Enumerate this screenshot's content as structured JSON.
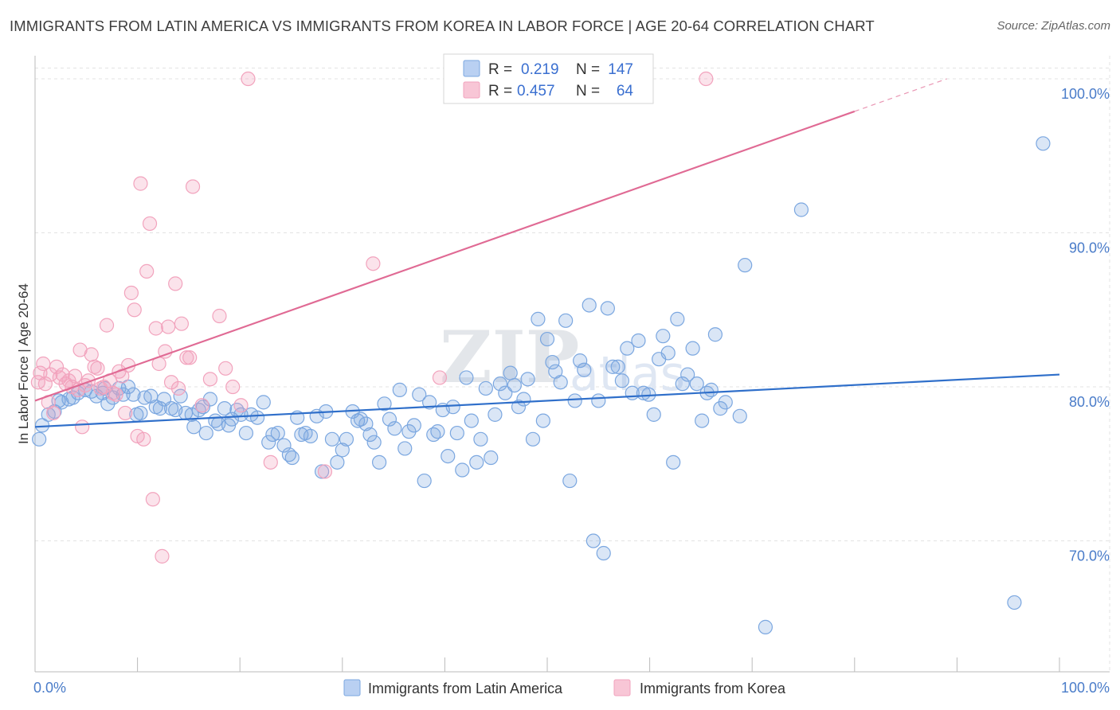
{
  "title": "IMMIGRANTS FROM LATIN AMERICA VS IMMIGRANTS FROM KOREA IN LABOR FORCE | AGE 20-64 CORRELATION CHART",
  "source": "Source: ZipAtlas.com",
  "watermark": {
    "zip": "ZIP",
    "atlas": "atlas"
  },
  "chart_data": {
    "type": "scatter",
    "xlabel": "",
    "ylabel": "In Labor Force | Age 20-64",
    "xlim": [
      0,
      100
    ],
    "ylim": [
      61.5,
      101.5
    ],
    "x_tick_labels": {
      "min": "0.0%",
      "max": "100.0%"
    },
    "y_ticks": [
      70,
      80,
      90,
      100
    ],
    "y_tick_labels": [
      "70.0%",
      "80.0%",
      "90.0%",
      "100.0%"
    ],
    "grid": true,
    "legend_position": "bottom",
    "stats_box_position": "top-center",
    "series": [
      {
        "name": "Immigrants from Latin America",
        "color": "#7ba7e0",
        "line_color": "#2f6fca",
        "r_label": "R =",
        "r": "0.219",
        "n_label": "N =",
        "n": "147",
        "trend": {
          "x": [
            0,
            100
          ],
          "y": [
            77.4,
            80.8
          ],
          "dashed_from": null
        },
        "points": [
          [
            0.4,
            76.6
          ],
          [
            0.7,
            77.5
          ],
          [
            1.3,
            78.2
          ],
          [
            1.9,
            78.4
          ],
          [
            2.3,
            79.1
          ],
          [
            2.6,
            79.0
          ],
          [
            3.3,
            79.2
          ],
          [
            3.7,
            79.3
          ],
          [
            4.2,
            79.6
          ],
          [
            4.9,
            79.8
          ],
          [
            5.5,
            79.7
          ],
          [
            6.0,
            79.4
          ],
          [
            6.6,
            79.6
          ],
          [
            6.8,
            79.9
          ],
          [
            7.1,
            78.9
          ],
          [
            7.6,
            79.3
          ],
          [
            8.2,
            79.9
          ],
          [
            8.6,
            79.5
          ],
          [
            9.1,
            80.0
          ],
          [
            9.6,
            79.5
          ],
          [
            9.9,
            78.2
          ],
          [
            10.3,
            78.3
          ],
          [
            10.7,
            79.3
          ],
          [
            11.3,
            79.4
          ],
          [
            11.8,
            78.7
          ],
          [
            12.2,
            78.6
          ],
          [
            12.6,
            79.2
          ],
          [
            13.3,
            78.6
          ],
          [
            13.7,
            78.5
          ],
          [
            14.2,
            79.4
          ],
          [
            14.7,
            78.3
          ],
          [
            15.3,
            78.2
          ],
          [
            15.5,
            77.4
          ],
          [
            16.0,
            78.5
          ],
          [
            16.4,
            78.7
          ],
          [
            16.7,
            77.0
          ],
          [
            17.1,
            79.2
          ],
          [
            17.6,
            77.8
          ],
          [
            17.9,
            77.6
          ],
          [
            18.5,
            78.6
          ],
          [
            18.9,
            77.5
          ],
          [
            19.2,
            77.9
          ],
          [
            19.7,
            78.5
          ],
          [
            20.1,
            78.2
          ],
          [
            20.6,
            77.0
          ],
          [
            21.1,
            78.2
          ],
          [
            21.7,
            78.0
          ],
          [
            22.3,
            79.0
          ],
          [
            22.8,
            76.4
          ],
          [
            23.2,
            76.9
          ],
          [
            23.7,
            77.0
          ],
          [
            24.3,
            76.2
          ],
          [
            24.8,
            75.6
          ],
          [
            25.1,
            75.4
          ],
          [
            25.6,
            78.0
          ],
          [
            26.0,
            76.9
          ],
          [
            26.4,
            77.0
          ],
          [
            26.9,
            76.8
          ],
          [
            27.5,
            78.1
          ],
          [
            28.0,
            74.5
          ],
          [
            28.4,
            78.4
          ],
          [
            29.0,
            76.6
          ],
          [
            29.5,
            75.1
          ],
          [
            30.0,
            75.9
          ],
          [
            30.4,
            76.6
          ],
          [
            31.0,
            78.4
          ],
          [
            31.5,
            77.8
          ],
          [
            31.8,
            77.9
          ],
          [
            32.3,
            77.6
          ],
          [
            32.7,
            76.9
          ],
          [
            33.1,
            76.4
          ],
          [
            33.6,
            75.1
          ],
          [
            34.1,
            78.9
          ],
          [
            34.6,
            77.9
          ],
          [
            35.1,
            77.3
          ],
          [
            35.6,
            79.8
          ],
          [
            36.1,
            76.0
          ],
          [
            36.5,
            77.1
          ],
          [
            37.0,
            77.5
          ],
          [
            37.5,
            79.5
          ],
          [
            38.0,
            73.9
          ],
          [
            38.5,
            79.0
          ],
          [
            38.9,
            76.9
          ],
          [
            39.3,
            77.1
          ],
          [
            39.8,
            78.5
          ],
          [
            40.3,
            75.5
          ],
          [
            40.8,
            78.7
          ],
          [
            41.2,
            77.0
          ],
          [
            41.7,
            74.6
          ],
          [
            42.1,
            80.6
          ],
          [
            42.6,
            77.8
          ],
          [
            43.1,
            75.1
          ],
          [
            43.5,
            76.6
          ],
          [
            44.0,
            79.9
          ],
          [
            44.5,
            75.4
          ],
          [
            44.9,
            78.2
          ],
          [
            45.4,
            80.2
          ],
          [
            45.9,
            79.6
          ],
          [
            46.4,
            80.9
          ],
          [
            46.8,
            80.1
          ],
          [
            47.2,
            78.7
          ],
          [
            47.7,
            79.2
          ],
          [
            48.1,
            80.5
          ],
          [
            48.6,
            76.6
          ],
          [
            49.1,
            84.4
          ],
          [
            49.6,
            77.8
          ],
          [
            50.0,
            83.1
          ],
          [
            50.5,
            81.6
          ],
          [
            50.8,
            81.0
          ],
          [
            51.3,
            80.3
          ],
          [
            51.8,
            84.3
          ],
          [
            52.2,
            73.9
          ],
          [
            52.7,
            79.1
          ],
          [
            53.2,
            81.7
          ],
          [
            53.6,
            81.1
          ],
          [
            54.1,
            85.3
          ],
          [
            54.5,
            70.0
          ],
          [
            55.0,
            79.1
          ],
          [
            55.5,
            69.2
          ],
          [
            55.9,
            85.1
          ],
          [
            56.4,
            81.3
          ],
          [
            56.9,
            81.3
          ],
          [
            57.3,
            80.4
          ],
          [
            57.8,
            82.5
          ],
          [
            58.3,
            79.6
          ],
          [
            58.9,
            83.0
          ],
          [
            59.4,
            79.6
          ],
          [
            59.9,
            79.5
          ],
          [
            60.4,
            78.2
          ],
          [
            60.9,
            81.8
          ],
          [
            61.3,
            83.3
          ],
          [
            61.8,
            82.2
          ],
          [
            62.3,
            75.1
          ],
          [
            62.7,
            84.4
          ],
          [
            63.2,
            80.2
          ],
          [
            63.7,
            80.8
          ],
          [
            64.2,
            82.5
          ],
          [
            64.6,
            80.2
          ],
          [
            65.1,
            77.8
          ],
          [
            65.6,
            79.6
          ],
          [
            66.0,
            79.8
          ],
          [
            66.4,
            83.4
          ],
          [
            66.9,
            78.6
          ],
          [
            67.4,
            79.0
          ],
          [
            68.8,
            78.1
          ],
          [
            69.3,
            87.9
          ],
          [
            71.3,
            64.4
          ],
          [
            74.8,
            91.5
          ],
          [
            95.6,
            66.0
          ],
          [
            98.4,
            95.8
          ]
        ]
      },
      {
        "name": "Immigrants from Korea",
        "color": "#f2a3bd",
        "line_color": "#e06a94",
        "r_label": "R =",
        "r": "0.457",
        "n_label": "N =",
        "n": "64",
        "trend": {
          "x": [
            0,
            89
          ],
          "y": [
            79.1,
            100.0
          ],
          "dashed_from": 80
        },
        "points": [
          [
            0.3,
            80.3
          ],
          [
            0.5,
            80.9
          ],
          [
            0.8,
            81.5
          ],
          [
            1.0,
            80.2
          ],
          [
            1.3,
            79.0
          ],
          [
            1.5,
            80.8
          ],
          [
            1.8,
            78.3
          ],
          [
            2.1,
            81.3
          ],
          [
            2.4,
            80.6
          ],
          [
            2.7,
            80.8
          ],
          [
            3.0,
            80.2
          ],
          [
            3.3,
            80.4
          ],
          [
            3.6,
            80.0
          ],
          [
            3.9,
            80.7
          ],
          [
            4.2,
            79.8
          ],
          [
            4.4,
            82.4
          ],
          [
            4.6,
            77.4
          ],
          [
            4.9,
            80.1
          ],
          [
            5.2,
            80.4
          ],
          [
            5.5,
            82.1
          ],
          [
            5.8,
            81.3
          ],
          [
            6.1,
            81.2
          ],
          [
            6.4,
            79.9
          ],
          [
            6.7,
            80.0
          ],
          [
            7.0,
            84.0
          ],
          [
            7.3,
            80.4
          ],
          [
            7.6,
            79.6
          ],
          [
            7.9,
            79.5
          ],
          [
            8.2,
            81.0
          ],
          [
            8.5,
            80.7
          ],
          [
            8.8,
            78.3
          ],
          [
            9.1,
            81.4
          ],
          [
            9.4,
            86.1
          ],
          [
            9.7,
            85.0
          ],
          [
            10.0,
            76.8
          ],
          [
            10.3,
            93.2
          ],
          [
            10.6,
            76.6
          ],
          [
            10.9,
            87.5
          ],
          [
            11.2,
            90.6
          ],
          [
            11.5,
            72.7
          ],
          [
            11.8,
            83.8
          ],
          [
            12.1,
            81.5
          ],
          [
            12.4,
            69.0
          ],
          [
            12.7,
            82.3
          ],
          [
            13.0,
            83.9
          ],
          [
            13.3,
            80.3
          ],
          [
            13.7,
            86.7
          ],
          [
            14.0,
            79.9
          ],
          [
            14.3,
            84.1
          ],
          [
            14.8,
            81.9
          ],
          [
            15.1,
            81.9
          ],
          [
            15.4,
            93.0
          ],
          [
            16.3,
            78.8
          ],
          [
            17.1,
            80.5
          ],
          [
            18.0,
            84.6
          ],
          [
            18.6,
            81.2
          ],
          [
            19.3,
            80.0
          ],
          [
            20.1,
            78.8
          ],
          [
            20.8,
            100.0
          ],
          [
            23.0,
            75.1
          ],
          [
            28.3,
            74.5
          ],
          [
            33.0,
            88.0
          ],
          [
            39.5,
            80.6
          ],
          [
            45.0,
            100.0
          ],
          [
            65.5,
            100.0
          ]
        ]
      }
    ]
  }
}
